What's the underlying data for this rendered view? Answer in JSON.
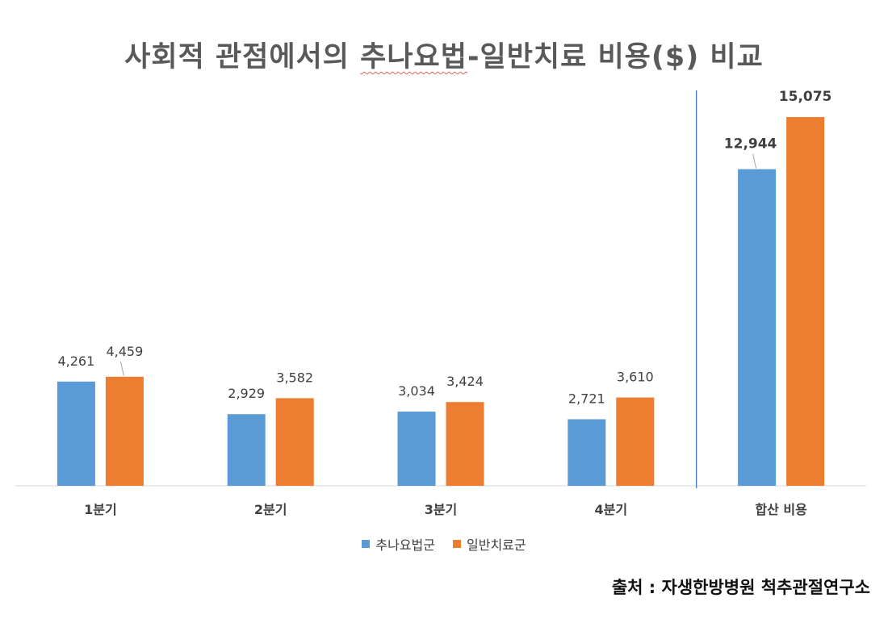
{
  "title_parts": [
    "사회적 관점에서의 ",
    "추나요법",
    "-일반치료 비용($) 비교"
  ],
  "source": "출처 : 자생한방병원 척추관절연구소",
  "chart_data": {
    "type": "bar",
    "title": "사회적 관점에서의 추나요법-일반치료 비용($) 비교",
    "categories": [
      "1분기",
      "2분기",
      "3분기",
      "4분기",
      "합산 비용"
    ],
    "series": [
      {
        "name": "추나요법군",
        "color": "#5B9BD5",
        "values": [
          4261,
          2929,
          3034,
          2721,
          12944
        ],
        "labels": [
          "4,261",
          "2,929",
          "3,034",
          "2,721",
          "12,944"
        ]
      },
      {
        "name": "일반치료군",
        "color": "#ED7D31",
        "values": [
          4459,
          3582,
          3424,
          3610,
          15075
        ],
        "labels": [
          "4,459",
          "3,582",
          "3,424",
          "3,610",
          "15,075"
        ]
      }
    ],
    "ylim": [
      0,
      16000
    ],
    "grid": false,
    "legend": "bottom",
    "separator_before_category": "합산 비용",
    "bold_labels_category": "합산 비용"
  }
}
